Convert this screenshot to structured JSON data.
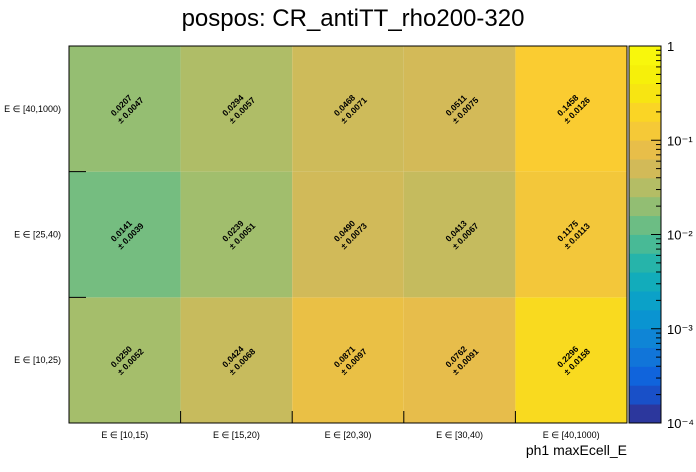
{
  "chart_data": {
    "type": "heatmap",
    "title": "pospos: CR_antiTT_rho200-320",
    "xlabel": "ph1 maxEcell_E",
    "ylabel": "",
    "x_categories": [
      "E ∈ [10,15)",
      "E ∈ [15,20)",
      "E ∈ [20,30)",
      "E ∈ [30,40)",
      "E ∈ [40,1000)"
    ],
    "y_categories": [
      "E ∈ [10,25)",
      "E ∈ [25,40)",
      "E ∈ [40,1000)"
    ],
    "values": [
      [
        0.025,
        0.0424,
        0.0871,
        0.0762,
        0.2296
      ],
      [
        0.0141,
        0.0239,
        0.049,
        0.0413,
        0.1175
      ],
      [
        0.0207,
        0.0294,
        0.0468,
        0.0511,
        0.1458
      ]
    ],
    "errors": [
      [
        0.0052,
        0.0068,
        0.0097,
        0.0091,
        0.0158
      ],
      [
        0.0039,
        0.0051,
        0.0073,
        0.0067,
        0.0113
      ],
      [
        0.0047,
        0.0057,
        0.0071,
        0.0075,
        0.0126
      ]
    ],
    "value_labels": [
      [
        "0.0250",
        "0.0424",
        "0.0871",
        "0.0762",
        "0.2296"
      ],
      [
        "0.0141",
        "0.0239",
        "0.0490",
        "0.0413",
        "0.1175"
      ],
      [
        "0.0207",
        "0.0294",
        "0.0468",
        "0.0511",
        "0.1458"
      ]
    ],
    "error_labels": [
      [
        "± 0.0052",
        "± 0.0068",
        "± 0.0097",
        "± 0.0091",
        "± 0.0158"
      ],
      [
        "± 0.0039",
        "± 0.0051",
        "± 0.0073",
        "± 0.0067",
        "± 0.0113"
      ],
      [
        "± 0.0047",
        "± 0.0057",
        "± 0.0071",
        "± 0.0075",
        "± 0.0126"
      ]
    ],
    "colorbar": {
      "scale": "log",
      "range": [
        0.0001,
        1
      ],
      "tick_labels": [
        "1",
        "10⁻¹",
        "10⁻²",
        "10⁻³",
        "10⁻⁴"
      ]
    },
    "grid": false
  }
}
